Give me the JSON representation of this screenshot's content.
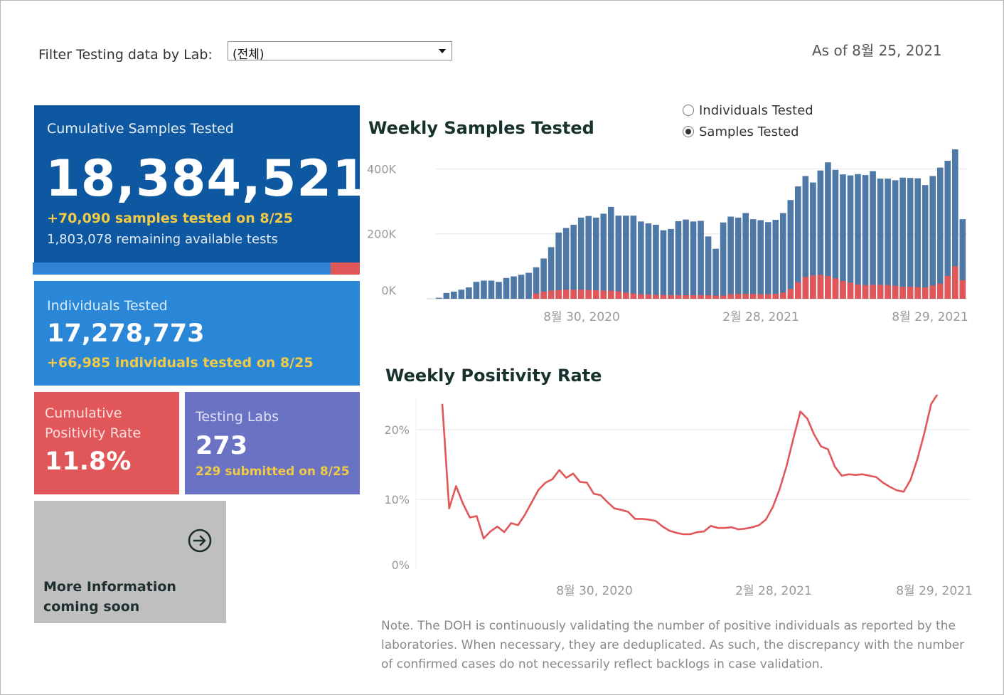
{
  "filter": {
    "label": "Filter Testing data by Lab:",
    "selected": "(전체)"
  },
  "as_of": "As of 8월 25, 2021",
  "kpi": {
    "samples": {
      "title": "Cumulative Samples Tested",
      "value": "18,384,521",
      "sub1": "+70,090 samples tested on 8/25",
      "sub2": "1,803,078 remaining available tests",
      "used_fraction": 0.9107
    },
    "individuals": {
      "title": "Individuals Tested",
      "value": "17,278,773",
      "sub": "+66,985  individuals  tested on 8/25"
    },
    "positivity": {
      "title": "Cumulative Positivity Rate",
      "value": "11.8%"
    },
    "labs": {
      "title": "Testing Labs",
      "value": "273",
      "sub": "229 submitted on 8/25"
    },
    "more": {
      "text": "More Information coming soon",
      "icon": "arrow-circle-right-icon"
    }
  },
  "toggle": {
    "options": [
      "Individuals Tested",
      "Samples Tested"
    ],
    "selected": 1
  },
  "colors": {
    "blue": "#4e79a7",
    "red": "#e15759",
    "dark_blue": "#0e58a1",
    "mid_blue": "#2a87d8",
    "purple": "#6a72c4",
    "grey": "#bfbfbf"
  },
  "chart_data": [
    {
      "type": "bar",
      "title": "Weekly Samples Tested",
      "y_ticks": [
        "400K",
        "200K",
        "0K"
      ],
      "x_ticks": [
        "8월 30, 2020",
        "2월 28, 2021",
        "8월 29, 2021"
      ],
      "ylim": [
        0,
        460000
      ],
      "series": [
        {
          "values": [
            3000,
            18000,
            22000,
            28000,
            35000,
            52000,
            56000,
            56000,
            52000,
            64000,
            69000,
            74000,
            80000,
            97000,
            124000,
            159000,
            204000,
            218000,
            228000,
            250000,
            255000,
            250000,
            262000,
            283000,
            256000,
            256000,
            256000,
            238000,
            232000,
            228000,
            211000,
            215000,
            239000,
            244000,
            238000,
            240000,
            192000,
            154000,
            235000,
            253000,
            250000,
            264000,
            245000,
            242000,
            236000,
            243000,
            264000,
            304000,
            346000,
            378000,
            358000,
            395000,
            420000,
            397000,
            383000,
            380000,
            384000,
            381000,
            393000,
            370000,
            370000,
            365000,
            373000,
            372000,
            371000,
            350000,
            378000,
            404000,
            425000,
            470000,
            245000
          ]
        },
        {
          "values": [
            0,
            0,
            0,
            0,
            0,
            0,
            0,
            0,
            0,
            0,
            0,
            0,
            0,
            16000,
            22000,
            25000,
            27000,
            28000,
            28000,
            28000,
            27000,
            26000,
            25000,
            25000,
            23000,
            19000,
            16000,
            14000,
            13000,
            12000,
            12000,
            11000,
            11000,
            11000,
            11000,
            11000,
            11000,
            10000,
            10000,
            14000,
            15000,
            15000,
            15000,
            14000,
            14000,
            15000,
            19000,
            30000,
            51000,
            67000,
            72000,
            74000,
            70000,
            63000,
            55000,
            50000,
            44000,
            42000,
            43000,
            43000,
            42000,
            40000,
            37000,
            37000,
            36000,
            35000,
            41000,
            47000,
            70000,
            100000,
            57000
          ]
        }
      ]
    },
    {
      "type": "line",
      "title": "Weekly Positivity Rate",
      "y_ticks": [
        "20%",
        "10%",
        "0%"
      ],
      "x_ticks": [
        "8월 30, 2020",
        "2월 28, 2021",
        "8월 29, 2021"
      ],
      "ylim": [
        0,
        25
      ],
      "values": [
        23.7,
        8.7,
        11.9,
        9.4,
        7.4,
        7.6,
        4.4,
        5.4,
        6.1,
        5.3,
        6.6,
        6.3,
        7.8,
        9.6,
        11.4,
        12.4,
        12.9,
        14.2,
        13.1,
        13.7,
        12.5,
        12.4,
        10.8,
        10.6,
        9.6,
        8.7,
        8.5,
        8.2,
        7.2,
        7.2,
        7.1,
        6.9,
        6.1,
        5.5,
        5.2,
        5.0,
        5.0,
        5.3,
        5.4,
        6.2,
        5.9,
        5.9,
        6.0,
        5.7,
        5.8,
        6.0,
        6.3,
        7.1,
        8.9,
        11.5,
        14.8,
        18.8,
        22.6,
        21.6,
        19.3,
        17.6,
        17.2,
        14.7,
        13.4,
        13.6,
        13.5,
        13.6,
        13.4,
        13.2,
        12.4,
        11.8,
        11.3,
        11.1,
        12.8,
        15.8,
        19.5,
        23.7,
        25.2,
        26.0
      ]
    }
  ],
  "note": "Note. The DOH is continuously validating the number of positive individuals as reported by the laboratories. When necessary, they are deduplicated. As such, the discrepancy with the number of confirmed cases do not necessarily reflect backlogs in case validation."
}
